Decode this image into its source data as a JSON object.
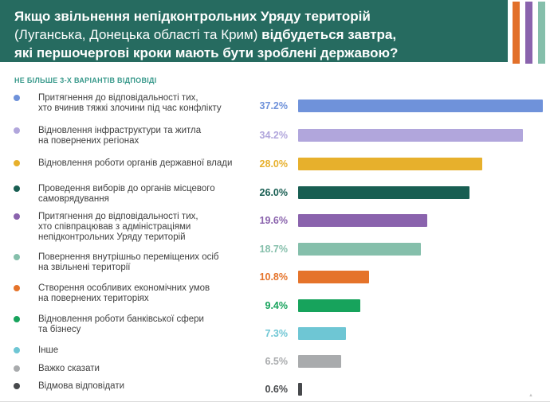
{
  "header": {
    "bg_color": "#266b60",
    "line1": "Якщо звільнення непідконтрольних Уряду територій",
    "line2_regular": "(Луганська, Донецька області та Крим) ",
    "line2_bold": "відбудеться завтра,",
    "line3": "які першочергові кроки мають бути зроблені державою?",
    "stripes": [
      "#e2702a",
      "#8a63ad",
      "#85bfab"
    ]
  },
  "subtitle": {
    "text": "НЕ БІЛЬШЕ 3-Х ВАРІАНТІВ ВІДПОВІДІ",
    "color": "#38998b"
  },
  "watermark": "▲",
  "chart_data": {
    "type": "bar",
    "orientation": "horizontal",
    "title": "Якщо звільнення непідконтрольних Уряду територій (Луганська, Донецька області та Крим) відбудеться завтра, які першочергові кроки мають бути зроблені державою?",
    "subtitle": "НЕ БІЛЬШЕ 3-Х ВАРІАНТІВ ВІДПОВІДІ",
    "unit": "%",
    "xlim": [
      0,
      40
    ],
    "grid": false,
    "value_labels": true,
    "legend_position": "left",
    "categories": [
      "Притягнення до відповідальності тих,\nхто вчинив тяжкі злочини під час конфлікту",
      "Відновлення інфраструктури та житла\nна повернених регіонах",
      "Відновлення роботи органів державної влади",
      "Проведення виборів до органів місцевого\nсамоврядування",
      "Притягнення до відповідальності тих,\nхто співпрацював з адміністраціями\nнепідконтрольних Уряду територій",
      "Повернення внутрішньо переміщених осіб\nна звільнені території",
      "Створення особливих економічних умов\nна повернених територіях",
      "Відновлення роботи банківської сфери\nта бізнесу",
      "Інше",
      "Важко сказати",
      "Відмова відповідати"
    ],
    "values": [
      37.2,
      34.2,
      28.0,
      26.0,
      19.6,
      18.7,
      10.8,
      9.4,
      7.3,
      6.5,
      0.6
    ],
    "items": [
      {
        "label": "Притягнення до відповідальності тих,\nхто вчинив тяжкі злочини під час конфлікту",
        "value": 37.2,
        "display": "37.2%",
        "color": "#6f92da"
      },
      {
        "label": "Відновлення інфраструктури та житла\nна повернених регіонах",
        "value": 34.2,
        "display": "34.2%",
        "color": "#b1a6dc"
      },
      {
        "label": "Відновлення роботи органів державної влади",
        "value": 28.0,
        "display": "28.0%",
        "color": "#e7b02c"
      },
      {
        "label": "Проведення виборів до органів місцевого\nсамоврядування",
        "value": 26.0,
        "display": "26.0%",
        "color": "#185e52"
      },
      {
        "label": "Притягнення до відповідальності тих,\nхто співпрацював з адміністраціями\nнепідконтрольних Уряду територій",
        "value": 19.6,
        "display": "19.6%",
        "color": "#8a63ad"
      },
      {
        "label": "Повернення внутрішньо переміщених осіб\nна звільнені території",
        "value": 18.7,
        "display": "18.7%",
        "color": "#85bfab"
      },
      {
        "label": "Створення особливих економічних умов\nна повернених територіях",
        "value": 10.8,
        "display": "10.8%",
        "color": "#e5732a"
      },
      {
        "label": "Відновлення роботи банківської сфери\nта бізнесу",
        "value": 9.4,
        "display": "9.4%",
        "color": "#17a35c"
      },
      {
        "label": "Інше",
        "value": 7.3,
        "display": "7.3%",
        "color": "#6ec6d4"
      },
      {
        "label": "Важко сказати",
        "value": 6.5,
        "display": "6.5%",
        "color": "#a9abad"
      },
      {
        "label": "Відмова відповідати",
        "value": 0.6,
        "display": "0.6%",
        "color": "#47494c"
      }
    ]
  }
}
